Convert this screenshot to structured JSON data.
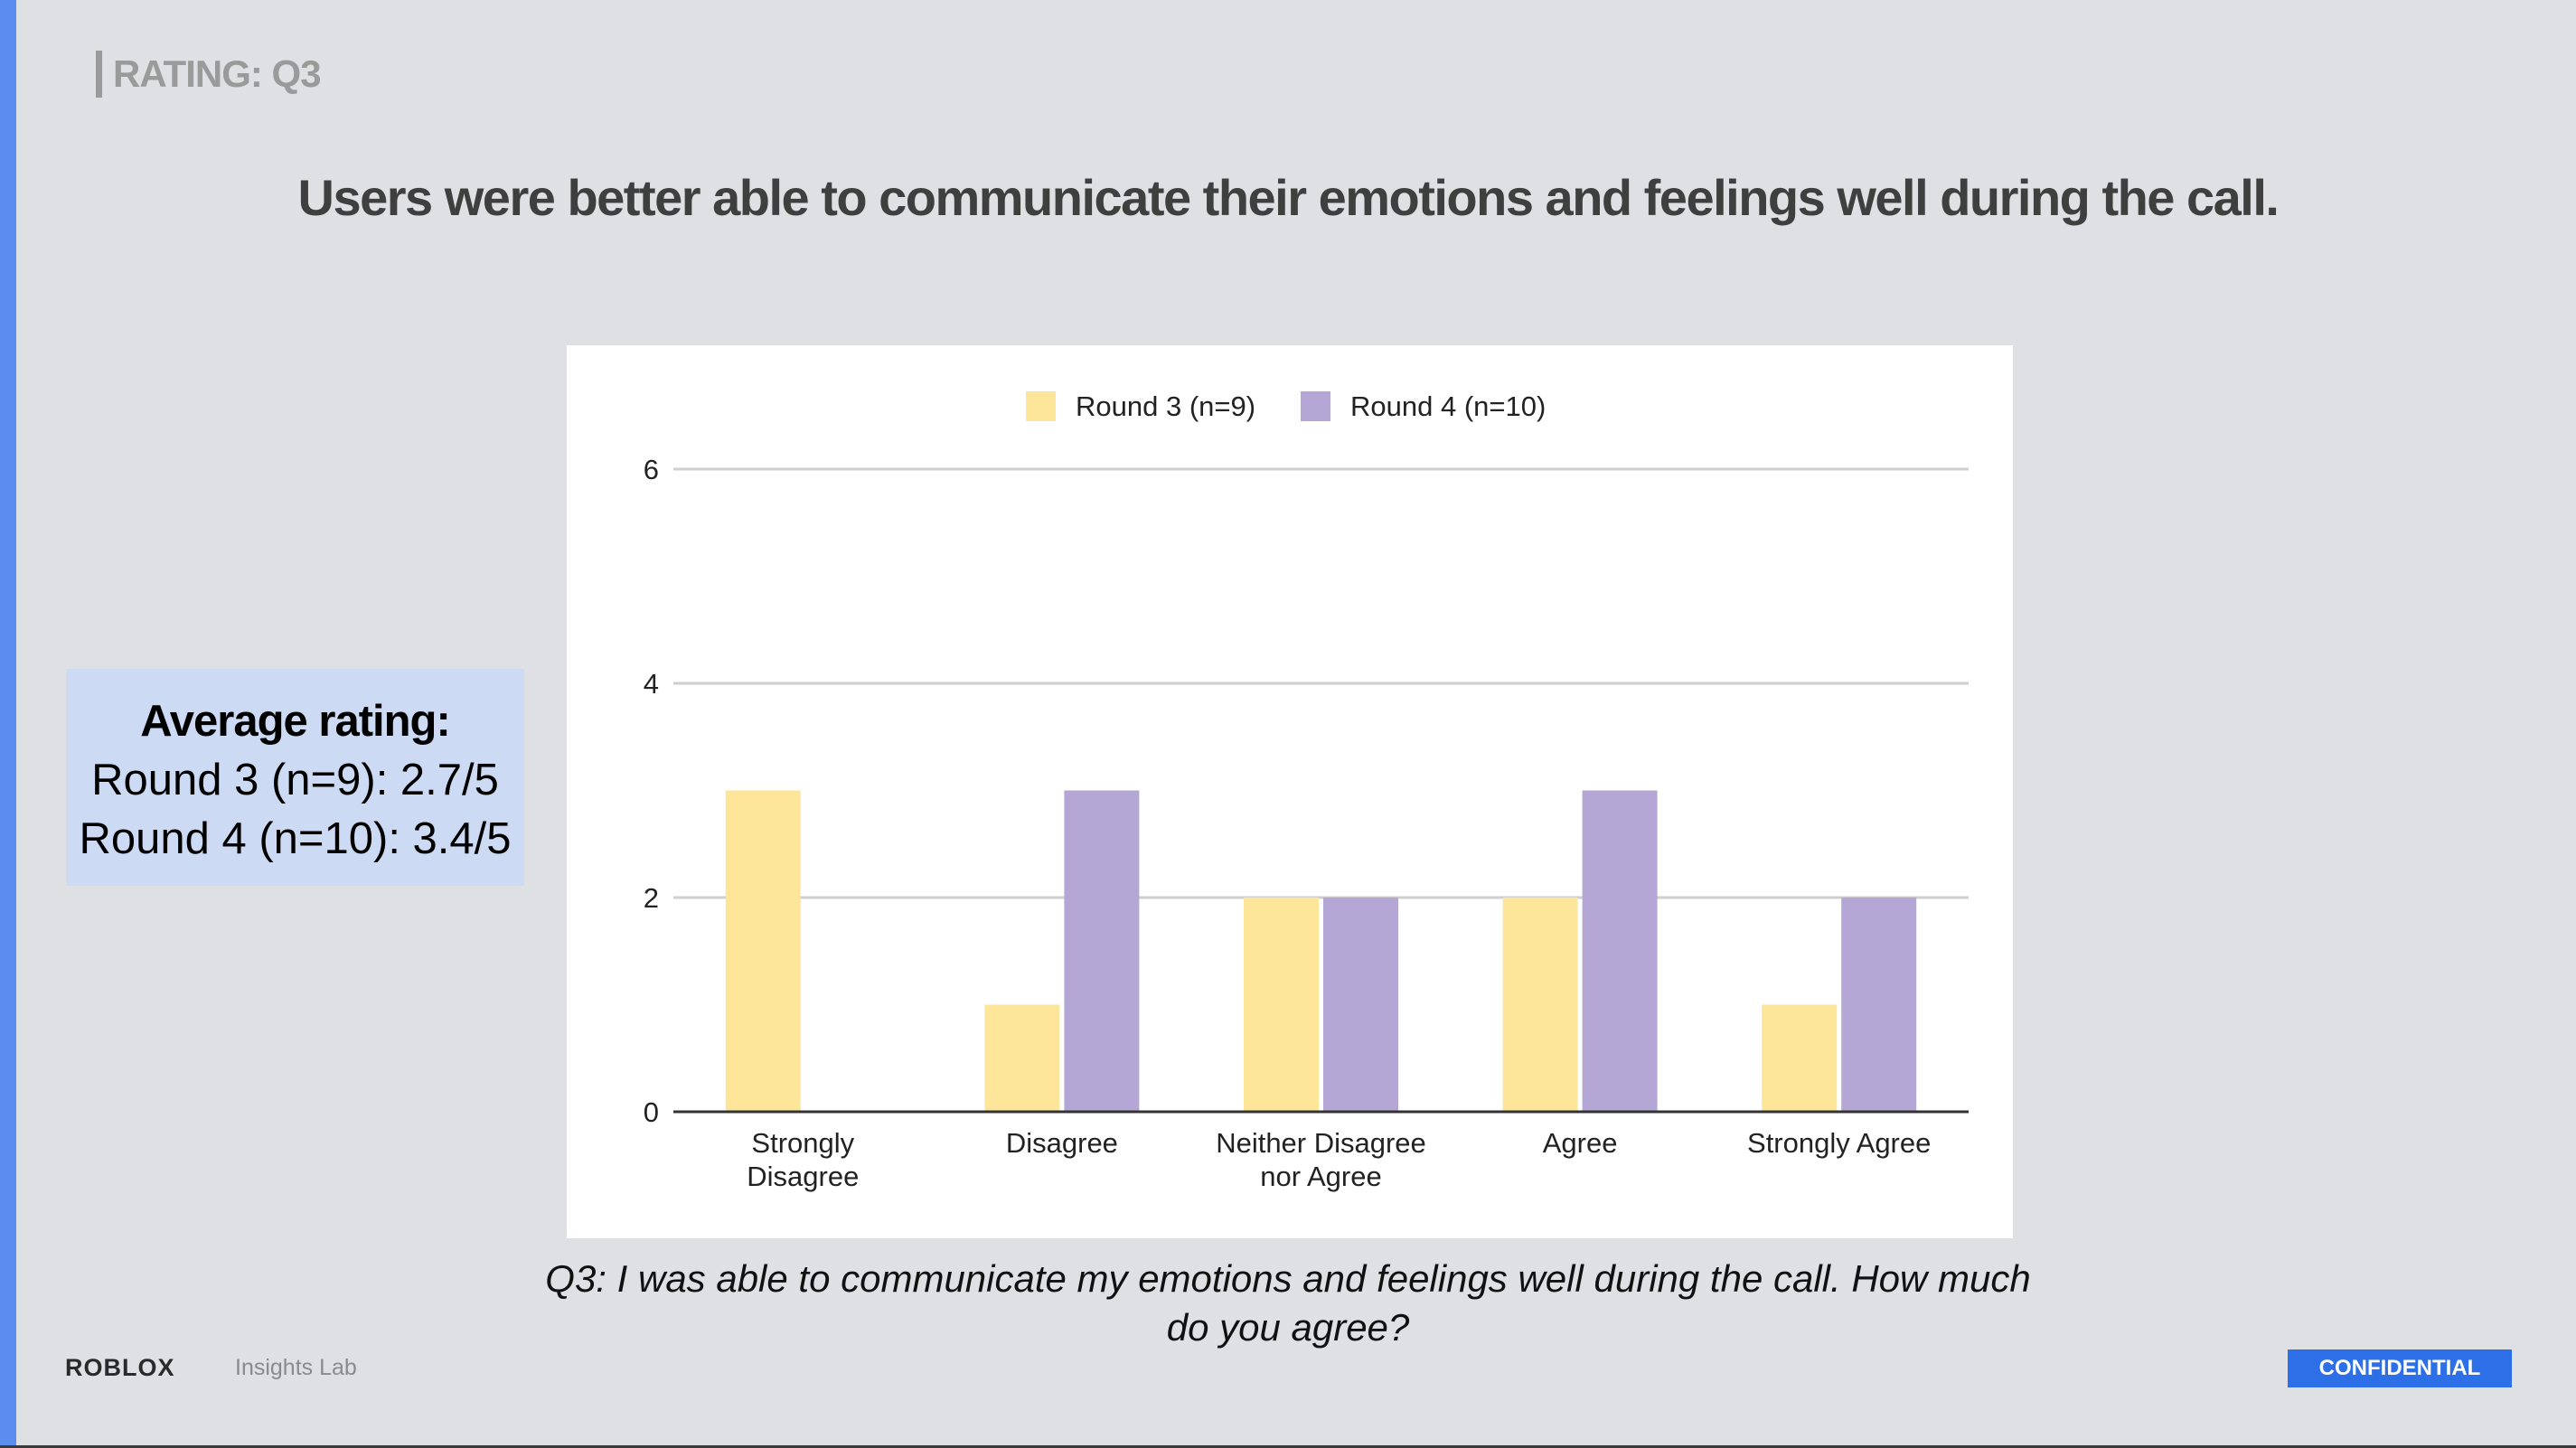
{
  "slide": {
    "section_tag": "RATING: Q3",
    "headline": "Users were better able to communicate their emotions and feelings well during the call.",
    "average_box": {
      "title": "Average rating:",
      "line1": "Round 3 (n=9): 2.7/5",
      "line2": "Round 4 (n=10): 3.4/5"
    },
    "question_line1": "Q3: I was able to communicate my emotions and feelings well during the call. How much",
    "question_line2": "do you agree?",
    "footer": {
      "logo": "ROBLOX",
      "sublabel": "Insights Lab",
      "badge": "CONFIDENTIAL"
    },
    "colors": {
      "background": "#dfe0e4",
      "accent_stripe": "#5b8def",
      "average_box": "#ccdaf4",
      "confidential": "#2d6fe6"
    }
  },
  "chart_data": {
    "type": "bar",
    "categories": [
      [
        "Strongly",
        "Disagree"
      ],
      [
        "Disagree"
      ],
      [
        "Neither Disagree",
        "nor Agree"
      ],
      [
        "Agree"
      ],
      [
        "Strongly Agree"
      ]
    ],
    "series": [
      {
        "name": "Round 3 (n=9)",
        "color": "#fde59a",
        "values": [
          3,
          1,
          2,
          2,
          1
        ]
      },
      {
        "name": "Round 4 (n=10)",
        "color": "#b4a7d6",
        "values": [
          0,
          3,
          2,
          3,
          2
        ]
      }
    ],
    "yticks": [
      "0",
      "2",
      "4",
      "6"
    ],
    "ylim": [
      0,
      6
    ],
    "grid": true,
    "legend_position": "top-center"
  }
}
